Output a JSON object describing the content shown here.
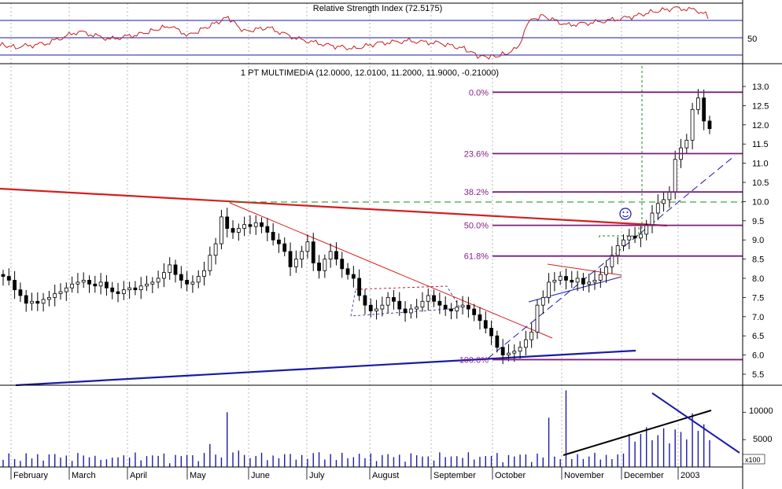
{
  "colors": {
    "fib_line": "#7a1f7a",
    "fib_label": "#8a1f8a",
    "rsi_line": "#c81e1e",
    "trend_red": "#d42020",
    "trend_blue": "#1a1aa8",
    "candle": "#000000",
    "volume": "#1a1aa8",
    "grid": "#888888",
    "green_dash": "#1a8a1a"
  },
  "chart_data": [
    {
      "type": "line",
      "title": "Relative Strength Index (72.5175)",
      "y_ticks": [
        "50"
      ],
      "ylim": [
        20,
        90
      ],
      "reference_levels": [
        30,
        50,
        70,
        90
      ],
      "legend": "none"
    },
    {
      "type": "candlestick",
      "title": "1 PT MULTIMEDIA (12.0000, 12.0100, 11.2000, 11.9000, -0.21000)",
      "ylim": [
        5.1,
        13.5
      ],
      "y_ticks": [
        "5.5",
        "6.0",
        "6.5",
        "7.0",
        "7.5",
        "8.0",
        "8.5",
        "9.0",
        "9.5",
        "10.0",
        "10.5",
        "11.0",
        "11.5",
        "12.0",
        "12.5",
        "13.0"
      ],
      "x_ticks": [
        "February",
        "March",
        "April",
        "May",
        "June",
        "July",
        "August",
        "September",
        "October",
        "November",
        "December",
        "2003"
      ],
      "series": [
        {
          "values_close": [
            8.05,
            7.95,
            7.7,
            7.55,
            7.35,
            7.4,
            7.35,
            7.45,
            7.5,
            7.6,
            7.65,
            7.75,
            7.85,
            7.9,
            7.95,
            7.85,
            7.8,
            7.9,
            7.75,
            7.65,
            7.6,
            7.7,
            7.75,
            7.7,
            7.8,
            7.85,
            7.9,
            8.0,
            8.15,
            8.35,
            8.1,
            7.95,
            7.85,
            7.9,
            8.05,
            8.2,
            8.6,
            8.9,
            9.6,
            9.3,
            9.2,
            9.3,
            9.4,
            9.35,
            9.45,
            9.35,
            9.2,
            9.0,
            8.9,
            8.7,
            8.3,
            8.5,
            8.7,
            8.95,
            8.4,
            8.2,
            8.5,
            8.7,
            8.5,
            8.25,
            8.1,
            8.0,
            7.55,
            7.3,
            7.15,
            7.2,
            7.3,
            7.5,
            7.4,
            7.2,
            7.1,
            7.2,
            7.25,
            7.4,
            7.55,
            7.4,
            7.3,
            7.2,
            7.15,
            7.25,
            7.3,
            7.2,
            7.05,
            6.9,
            6.7,
            6.5,
            6.2,
            6.0,
            6.05,
            6.1,
            6.2,
            6.4,
            6.6,
            7.3,
            7.5,
            7.9,
            7.95,
            8.05,
            7.95,
            7.9,
            8.0,
            7.85,
            7.9,
            7.95,
            8.1,
            8.3,
            8.6,
            8.85,
            9.0,
            9.1,
            9.05,
            9.15,
            9.4,
            9.7,
            9.95,
            10.05,
            10.25,
            11.1,
            11.4,
            11.6,
            12.4,
            12.7,
            12.1,
            11.9
          ]
        }
      ],
      "fibonacci": [
        {
          "label": "0.0%",
          "value": 12.85
        },
        {
          "label": "23.6%",
          "value": 11.25
        },
        {
          "label": "38.2%",
          "value": 10.25
        },
        {
          "label": "50.0%",
          "value": 9.38
        },
        {
          "label": "61.8%",
          "value": 8.58
        },
        {
          "label": "100.0%",
          "value": 5.88
        }
      ],
      "support_level": 9.95,
      "legend": "none"
    },
    {
      "type": "bar",
      "title": "",
      "y_ticks": [
        "10000",
        "5000"
      ],
      "scale_label": "x100",
      "ylim": [
        0,
        14500
      ],
      "legend": "none"
    }
  ]
}
